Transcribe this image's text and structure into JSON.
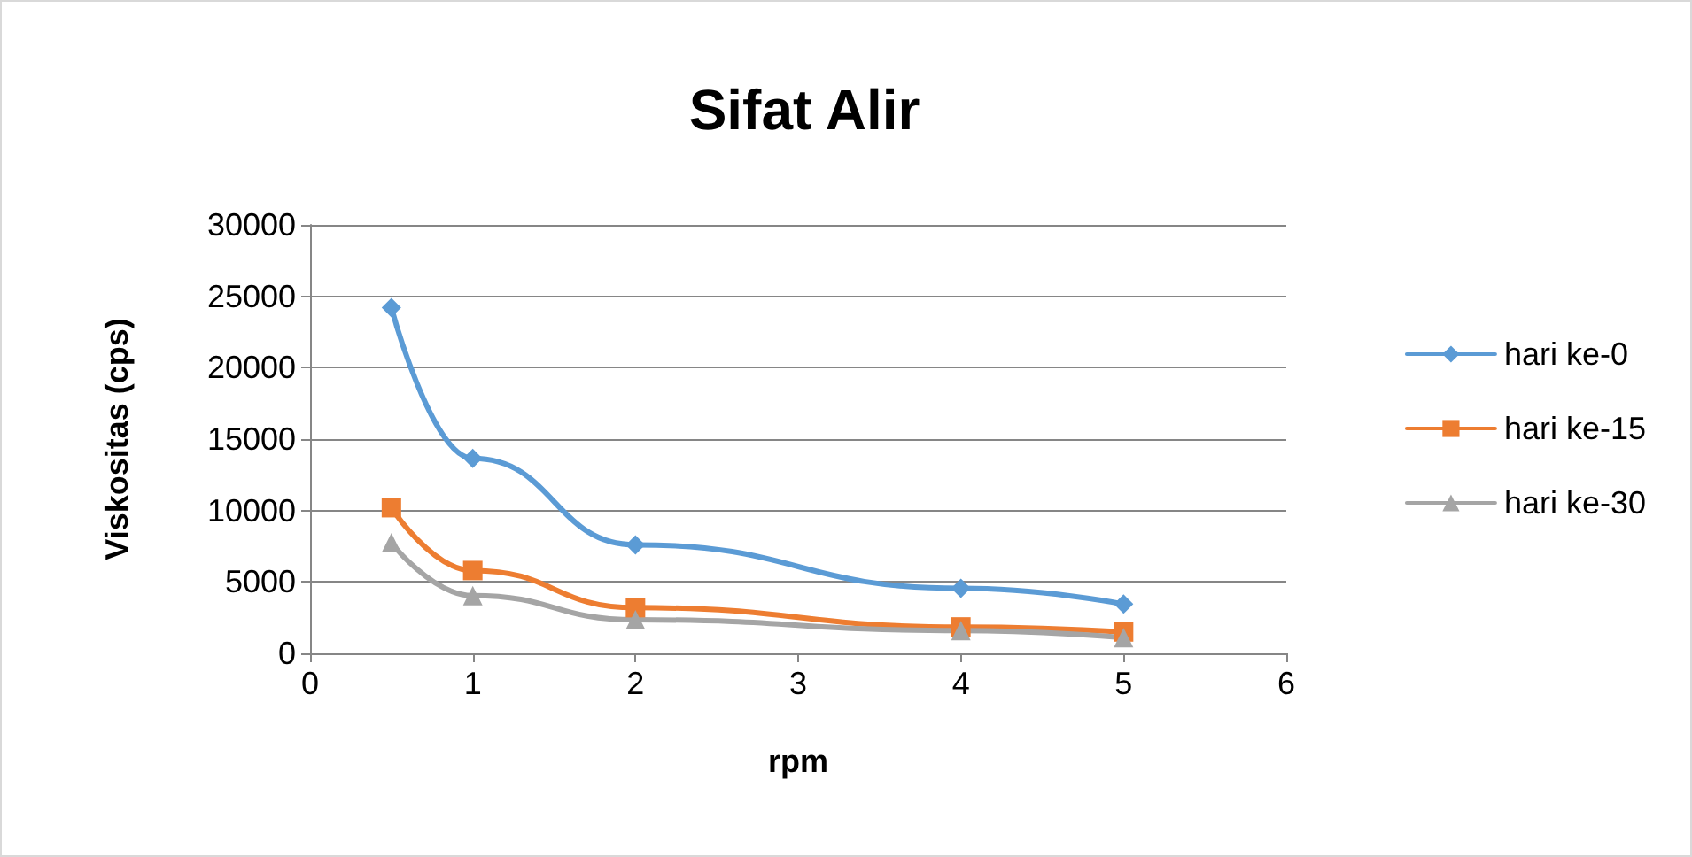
{
  "chart_data": {
    "type": "line",
    "title": "Sifat Alir",
    "xlabel": "rpm",
    "ylabel": "Viskositas (cps)",
    "x": [
      0.5,
      1,
      2,
      4,
      5
    ],
    "series": [
      {
        "name": "hari ke-0",
        "color": "#5b9bd5",
        "marker": "diamond",
        "values": [
          24200,
          13650,
          7600,
          4550,
          3450
        ]
      },
      {
        "name": "hari ke-15",
        "color": "#ed7d31",
        "marker": "square",
        "values": [
          10200,
          5800,
          3200,
          1850,
          1500
        ]
      },
      {
        "name": "hari ke-30",
        "color": "#a5a5a5",
        "marker": "triangle",
        "values": [
          7750,
          4050,
          2350,
          1600,
          1100
        ]
      }
    ],
    "xlim": [
      0,
      6
    ],
    "xticks": [
      0,
      1,
      2,
      3,
      4,
      5,
      6
    ],
    "ylim": [
      0,
      30000
    ],
    "yticks": [
      0,
      5000,
      10000,
      15000,
      20000,
      25000,
      30000
    ],
    "grid": "y",
    "legend": "right",
    "line_style": "solid"
  }
}
